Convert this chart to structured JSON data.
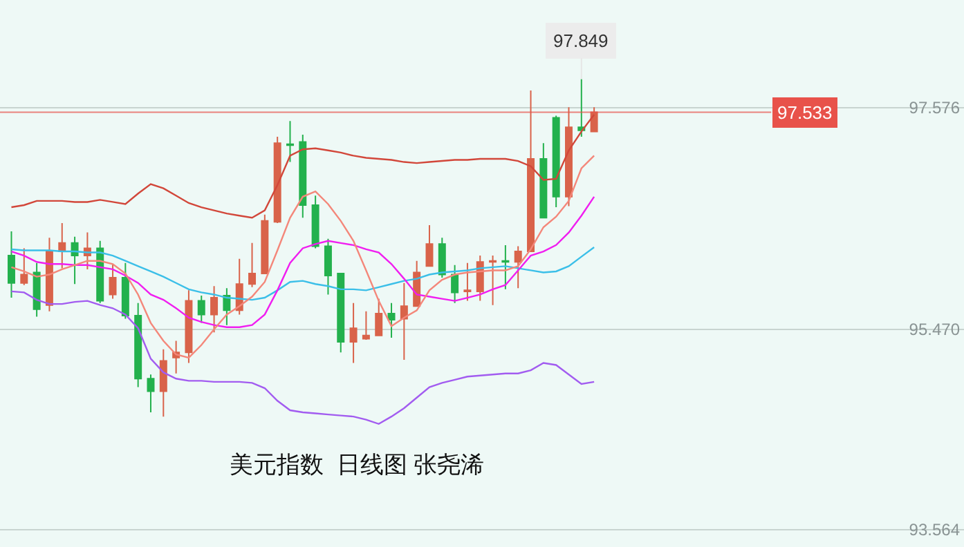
{
  "chart_data": {
    "type": "candlestick",
    "title": "美元指数  日线图 张尧浠",
    "categories": [
      null,
      null,
      null,
      null,
      null,
      null,
      null,
      null,
      null,
      null,
      null,
      null,
      null,
      null,
      null,
      null,
      null,
      null,
      null,
      null,
      null,
      null,
      null,
      null,
      null,
      null,
      null,
      null,
      null,
      null,
      null,
      null,
      null,
      null,
      null,
      null,
      null,
      null,
      null,
      null,
      null,
      null,
      null,
      null,
      null,
      null,
      null
    ],
    "ohlc": [
      [
        96.17,
        96.4,
        95.77,
        95.91
      ],
      [
        95.91,
        96.24,
        95.89,
        95.99
      ],
      [
        96.01,
        96.1,
        95.59,
        95.66
      ],
      [
        95.7,
        96.34,
        95.64,
        96.21
      ],
      [
        96.21,
        96.48,
        96.05,
        96.29
      ],
      [
        96.29,
        96.35,
        95.9,
        96.17
      ],
      [
        96.17,
        96.39,
        96.04,
        96.24
      ],
      [
        96.24,
        96.31,
        95.72,
        95.74
      ],
      [
        95.8,
        96.09,
        95.76,
        95.96
      ],
      [
        95.96,
        96.1,
        95.57,
        95.6
      ],
      [
        95.6,
        95.72,
        94.92,
        95.0
      ],
      [
        95.0,
        95.04,
        94.68,
        94.88
      ],
      [
        94.88,
        95.28,
        94.64,
        95.17
      ],
      [
        95.2,
        95.36,
        95.05,
        95.25
      ],
      [
        95.25,
        95.84,
        95.15,
        95.74
      ],
      [
        95.74,
        95.79,
        95.53,
        95.61
      ],
      [
        95.61,
        95.88,
        95.44,
        95.77
      ],
      [
        95.79,
        95.86,
        95.51,
        95.65
      ],
      [
        95.65,
        96.14,
        95.61,
        95.9
      ],
      [
        95.9,
        96.29,
        95.87,
        96.0
      ],
      [
        96.0,
        96.56,
        96.0,
        96.5
      ],
      [
        96.49,
        97.3,
        96.48,
        97.24
      ],
      [
        97.23,
        97.45,
        97.06,
        97.22
      ],
      [
        97.25,
        97.32,
        96.53,
        96.65
      ],
      [
        96.65,
        96.74,
        96.24,
        96.26
      ],
      [
        96.26,
        96.33,
        95.8,
        95.98
      ],
      [
        96.0,
        96.0,
        95.25,
        95.35
      ],
      [
        95.35,
        95.72,
        95.15,
        95.48
      ],
      [
        95.38,
        95.64,
        95.37,
        95.41
      ],
      [
        95.41,
        95.76,
        95.41,
        95.62
      ],
      [
        95.62,
        95.72,
        95.39,
        95.56
      ],
      [
        95.57,
        95.91,
        95.18,
        95.69
      ],
      [
        95.69,
        96.12,
        95.69,
        96.01
      ],
      [
        96.07,
        96.46,
        96.07,
        96.28
      ],
      [
        96.28,
        96.34,
        95.96,
        95.99
      ],
      [
        95.99,
        96.08,
        95.72,
        95.82
      ],
      [
        95.83,
        96.1,
        95.74,
        95.84
      ],
      [
        95.83,
        96.17,
        95.74,
        96.11
      ],
      [
        96.11,
        96.17,
        95.7,
        96.12
      ],
      [
        96.12,
        96.27,
        95.85,
        96.11
      ],
      [
        96.11,
        96.26,
        95.86,
        96.21
      ],
      [
        96.21,
        97.74,
        96.21,
        97.09
      ],
      [
        97.09,
        97.24,
        96.53,
        96.53
      ],
      [
        97.48,
        97.5,
        96.63,
        96.73
      ],
      [
        96.73,
        97.58,
        96.64,
        97.39
      ],
      [
        97.39,
        97.849,
        97.3,
        97.36
      ],
      [
        97.35,
        97.58,
        97.35,
        97.533
      ]
    ],
    "colors": [
      "#23b14d",
      "#d9634a",
      "#23b14d",
      "#d9634a",
      "#d9634a",
      "#23b14d",
      "#d9634a",
      "#23b14d",
      "#d9634a",
      "#23b14d",
      "#23b14d",
      "#23b14d",
      "#d9634a",
      "#d9634a",
      "#d9634a",
      "#23b14d",
      "#d9634a",
      "#23b14d",
      "#d9634a",
      "#d9634a",
      "#d9634a",
      "#d9634a",
      "#23b14d",
      "#23b14d",
      "#23b14d",
      "#23b14d",
      "#23b14d",
      "#d9634a",
      "#d9634a",
      "#d9634a",
      "#23b14d",
      "#d9634a",
      "#d9634a",
      "#d9634a",
      "#23b14d",
      "#23b14d",
      "#d9634a",
      "#d9634a",
      "#d9634a",
      "#23b14d",
      "#d9634a",
      "#d9634a",
      "#23b14d",
      "#23b14d",
      "#d9634a",
      "#23b14d",
      "#d9634a"
    ],
    "series": [
      {
        "type": "line",
        "color": "#d2473a",
        "values": [
          96.63,
          96.65,
          96.69,
          96.69,
          96.69,
          96.68,
          96.68,
          96.7,
          96.68,
          96.66,
          96.76,
          96.85,
          96.81,
          96.74,
          96.67,
          96.63,
          96.6,
          96.57,
          96.55,
          96.53,
          96.6,
          96.84,
          97.12,
          97.18,
          97.19,
          97.17,
          97.15,
          97.12,
          97.1,
          97.09,
          97.08,
          97.06,
          97.05,
          97.06,
          97.07,
          97.08,
          97.08,
          97.09,
          97.09,
          97.09,
          97.07,
          97.02,
          96.89,
          96.9,
          97.17,
          97.35,
          97.51
        ]
      },
      {
        "type": "line",
        "color": "#a25cf0",
        "values": [
          95.83,
          95.82,
          95.75,
          95.71,
          95.71,
          95.73,
          95.74,
          95.7,
          95.67,
          95.61,
          95.48,
          95.19,
          95.06,
          95.0,
          94.98,
          94.98,
          94.97,
          94.97,
          94.97,
          94.96,
          94.91,
          94.79,
          94.7,
          94.68,
          94.67,
          94.66,
          94.65,
          94.64,
          94.61,
          94.57,
          94.64,
          94.72,
          94.82,
          94.92,
          94.96,
          94.99,
          95.02,
          95.03,
          95.04,
          95.05,
          95.05,
          95.08,
          95.15,
          95.13,
          95.04,
          94.95,
          94.97
        ]
      },
      {
        "type": "line",
        "color": "#3bbfe8",
        "values": [
          96.23,
          96.22,
          96.22,
          96.22,
          96.21,
          96.21,
          96.2,
          96.2,
          96.17,
          96.12,
          96.07,
          96.02,
          95.97,
          95.91,
          95.85,
          95.82,
          95.8,
          95.77,
          95.76,
          95.75,
          95.77,
          95.84,
          95.92,
          95.93,
          95.9,
          95.88,
          95.85,
          95.85,
          95.84,
          95.87,
          95.9,
          95.93,
          95.95,
          95.99,
          96.01,
          96.02,
          96.03,
          96.05,
          96.06,
          96.07,
          96.05,
          96.03,
          96.01,
          96.02,
          96.07,
          96.16,
          96.25
        ]
      },
      {
        "type": "line",
        "color": "#f01ef0",
        "values": [
          96.21,
          96.17,
          96.11,
          96.09,
          96.09,
          96.08,
          96.08,
          96.06,
          96.04,
          95.98,
          95.91,
          95.8,
          95.75,
          95.67,
          95.58,
          95.54,
          95.51,
          95.49,
          95.49,
          95.51,
          95.61,
          95.84,
          96.1,
          96.24,
          96.28,
          96.31,
          96.29,
          96.27,
          96.23,
          96.2,
          96.09,
          95.95,
          95.8,
          95.78,
          95.76,
          95.74,
          95.77,
          95.8,
          95.85,
          95.89,
          96.03,
          96.17,
          96.21,
          96.27,
          96.39,
          96.55,
          96.73
        ]
      },
      {
        "type": "line",
        "color": "#f4877a",
        "values": [
          96.06,
          96.02,
          95.97,
          95.99,
          96.04,
          96.08,
          96.12,
          96.12,
          96.09,
          96.0,
          95.8,
          95.53,
          95.36,
          95.23,
          95.2,
          95.32,
          95.47,
          95.61,
          95.69,
          95.78,
          95.92,
          96.22,
          96.53,
          96.73,
          96.78,
          96.66,
          96.5,
          96.31,
          96.03,
          95.74,
          95.5,
          95.58,
          95.65,
          95.84,
          95.94,
          95.99,
          96.01,
          96.02,
          96.03,
          96.03,
          96.07,
          96.23,
          96.44,
          96.54,
          96.69,
          97.0,
          97.12
        ]
      }
    ],
    "annotations": [
      {
        "text": "97.849",
        "y": 97.849
      }
    ],
    "ref_lines": [
      {
        "axis": "y",
        "value": 97.533,
        "label": "97.533",
        "color": "#e8524a"
      }
    ],
    "ylim": [
      93.4,
      98.6
    ],
    "yticks": [
      {
        "value": 97.576,
        "label": "97.576"
      },
      {
        "value": 95.47,
        "label": "95.470"
      },
      {
        "value": 93.564,
        "label": "93.564"
      }
    ],
    "tick_labels": "y",
    "grid": "y"
  }
}
